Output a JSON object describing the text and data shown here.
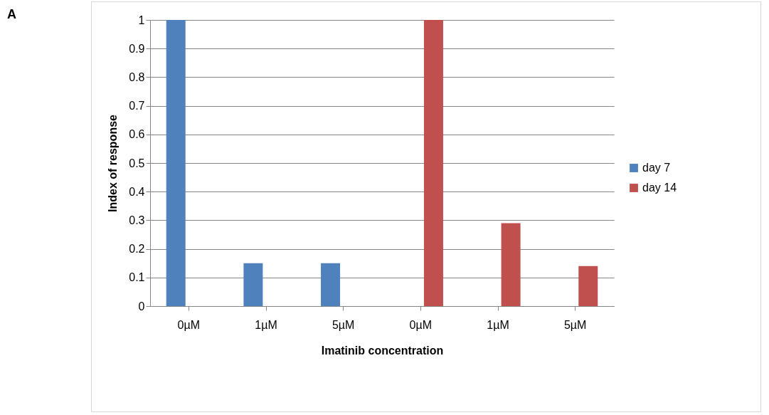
{
  "chart_data": {
    "type": "bar",
    "xlabel": "Imatinib concentration",
    "ylabel": "Index of response",
    "annotations": [
      "A"
    ],
    "categories": [
      "0µM",
      "1µM",
      "5µM",
      "0µM",
      "1µM",
      "5µM"
    ],
    "series": [
      {
        "name": "day 7",
        "color": "#4f81bd",
        "values": [
          1,
          0.15,
          0.15,
          null,
          null,
          null
        ]
      },
      {
        "name": "day 14",
        "color": "#c0504d",
        "values": [
          null,
          null,
          null,
          1,
          0.29,
          0.14
        ]
      }
    ],
    "ylim": [
      0,
      1
    ],
    "yticks": [
      0,
      0.1,
      0.2,
      0.3,
      0.4,
      0.5,
      0.6,
      0.7,
      0.8,
      0.9,
      1
    ],
    "grid": "y",
    "legend": "right"
  }
}
